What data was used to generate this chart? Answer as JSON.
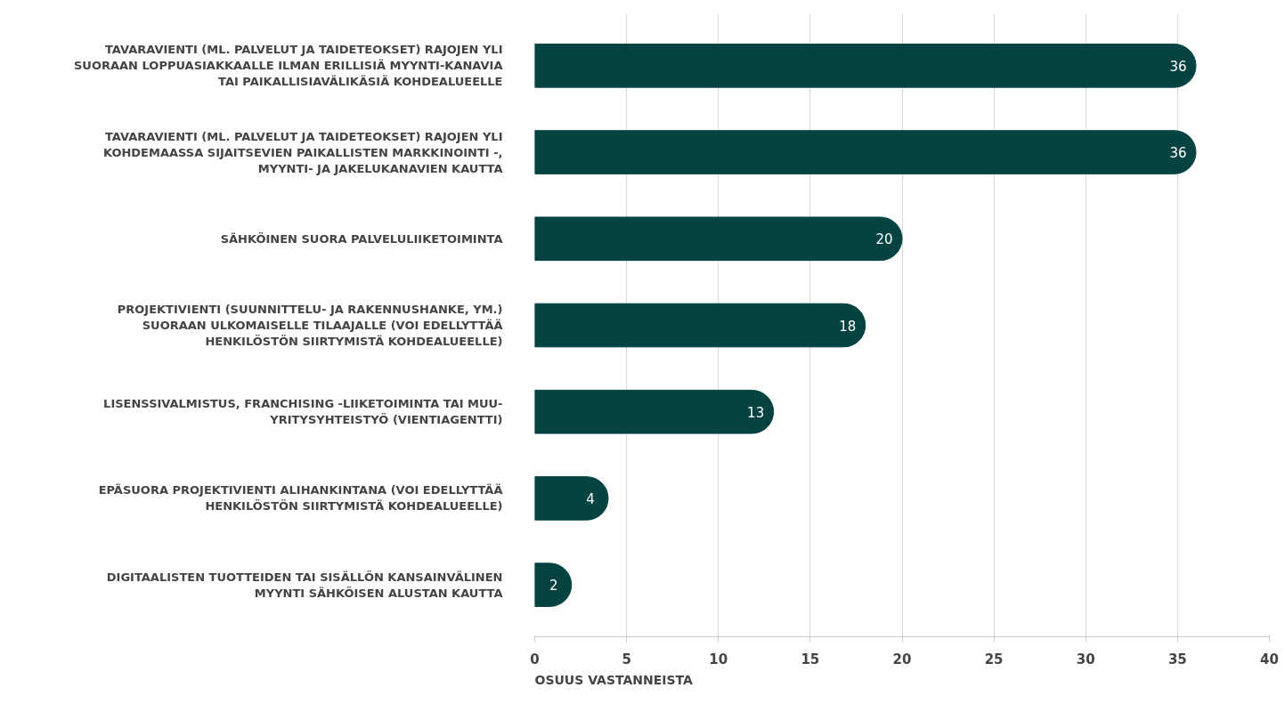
{
  "chart_data": {
    "type": "bar",
    "orientation": "horizontal",
    "xlabel": "OSUUS VASTANNEISTA",
    "categories": [
      "TAVARAVIENTI (ML. PALVELUT JA TAIDETEOKSET) RAJOJEN YLI SUORAAN LOPPUASIAKKAALLE ILMAN ERILLISIÄ MYYNTI-KANAVIA TAI PAIKALLISIAVÄLIKÄSIÄ KOHDEALUEELLE",
      "TAVARAVIENTI (ML. PALVELUT JA TAIDETEOKSET) RAJOJEN YLI KOHDEMAASSA SIJAITSEVIEN PAIKALLISTEN MARKKINOINTI -, MYYNTI- JA JAKELUKANAVIEN KAUTTA",
      "SÄHKÖINEN SUORA PALVELULIIKETOIMINTA",
      "PROJEKTIVIENTI (SUUNNITTELU- JA RAKENNUSHANKE, YM.) SUORAAN ULKOMAISELLE TILAAJALLE (VOI EDELLYTTÄÄ HENKILÖSTÖN SIIRTYMISTÄ KOHDEALUEELLE)",
      "LISENSSIVALMISTUS, FRANCHISING -LIIKETOIMINTA TAI MUU-YRITYSYHTEISTYÖ (VIENTIAGENTTI)",
      "EPÄSUORA PROJEKTIVIENTI ALIHANKINTANA (VOI EDELLYTTÄÄ HENKILÖSTÖN SIIRTYMISTÄ KOHDEALUEELLE)",
      "DIGITAALISTEN TUOTTEIDEN TAI SISÄLLÖN KANSAINVÄLINEN MYYNTI SÄHKÖISEN ALUSTAN KAUTTA"
    ],
    "values": [
      36,
      36,
      20,
      18,
      13,
      4,
      2
    ],
    "color": "#054242",
    "data_labels": true,
    "xlim": [
      0,
      40
    ],
    "xticks": [
      0,
      5,
      10,
      15,
      20,
      25,
      30,
      35,
      40
    ],
    "grid": "x"
  }
}
